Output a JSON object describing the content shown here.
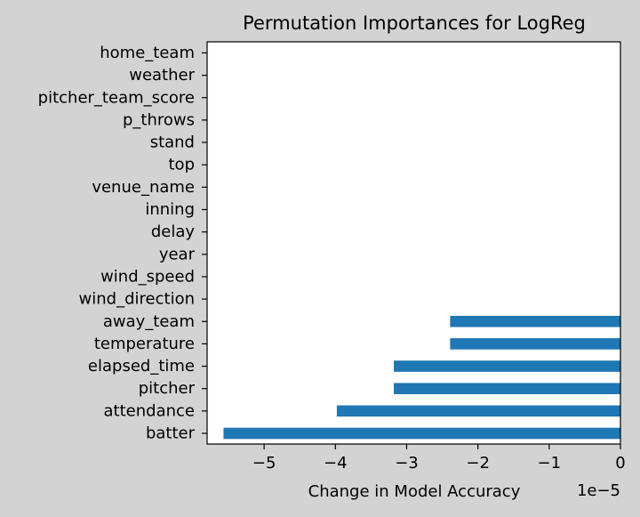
{
  "colors": {
    "figure_background": "#d3d3d3",
    "axes_background": "#ffffff",
    "bar": "#1f77b4",
    "text": "#000000"
  },
  "chart_data": {
    "type": "bar",
    "orientation": "horizontal",
    "title": "Permutation Importances for LogReg",
    "xlabel": "Change in Model Accuracy",
    "ylabel": "",
    "x_scale_label": "1e−5",
    "xlim": [
      -5.8,
      0
    ],
    "grid": false,
    "categories": [
      "batter",
      "attendance",
      "pitcher",
      "elapsed_time",
      "temperature",
      "away_team",
      "wind_direction",
      "wind_speed",
      "year",
      "delay",
      "inning",
      "venue_name",
      "top",
      "stand",
      "p_throws",
      "pitcher_team_score",
      "weather",
      "home_team"
    ],
    "values": [
      -5.57,
      -3.98,
      -3.18,
      -3.18,
      -2.39,
      -2.39,
      0,
      0,
      0,
      0,
      0,
      0,
      0,
      0,
      0,
      0,
      0,
      0
    ],
    "x_ticks": [
      -5,
      -4,
      -3,
      -2,
      -1,
      0
    ],
    "x_tick_labels": [
      "−5",
      "−4",
      "−3",
      "−2",
      "−1",
      "0"
    ]
  }
}
